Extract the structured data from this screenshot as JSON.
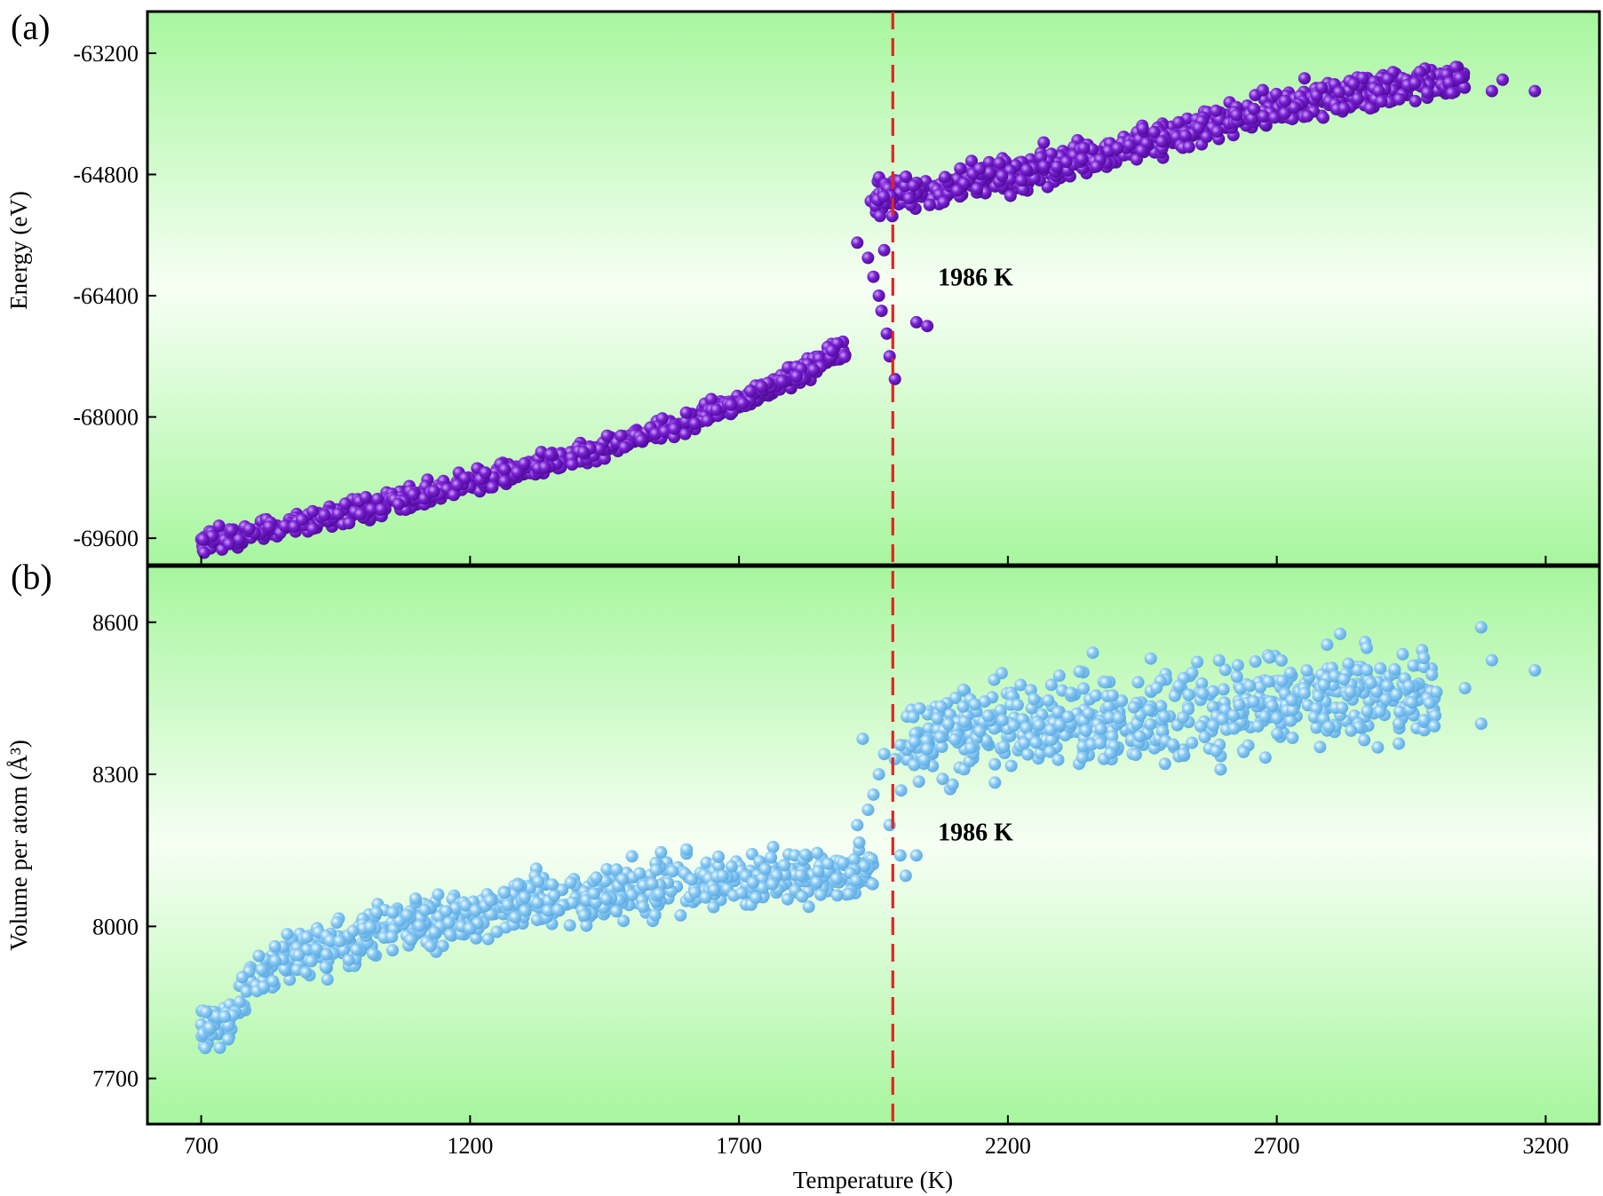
{
  "chart_data": {
    "type": "scatter",
    "shared_x": {
      "label": "Temperature (K)",
      "range": [
        600,
        3300
      ],
      "ticks": [
        700,
        1200,
        1700,
        2200,
        2700,
        3200
      ],
      "tick_labels": [
        "700",
        "1200",
        "1700",
        "2200",
        "2700",
        "3200"
      ]
    },
    "transition": {
      "temperature": 1986,
      "label": "1986 K",
      "line_color": "#e8211e"
    },
    "panels": [
      {
        "panel_label": "(a)",
        "ylabel": "Energy (eV)",
        "ylim": [
          -69950,
          -62650
        ],
        "yticks": [
          -63200,
          -64800,
          -66400,
          -68000,
          -69600
        ],
        "ytick_labels": [
          "-63200",
          "-64800",
          "-66400",
          "-68000",
          "-69600"
        ],
        "point_color": "#7a1fd6",
        "annotation": {
          "text": "1986 K",
          "x": 2070,
          "y": -66150
        },
        "series": [
          {
            "name": "solid",
            "segments": [
              {
                "x": 700,
                "y": -69650
              },
              {
                "x": 900,
                "y": -69400
              },
              {
                "x": 1100,
                "y": -69050
              },
              {
                "x": 1300,
                "y": -68700
              },
              {
                "x": 1500,
                "y": -68300
              },
              {
                "x": 1700,
                "y": -67800
              },
              {
                "x": 1800,
                "y": -67450
              },
              {
                "x": 1900,
                "y": -67100
              }
            ],
            "noise": 70
          },
          {
            "name": "transition",
            "points": [
              {
                "x": 1920,
                "y": -65700
              },
              {
                "x": 1940,
                "y": -65900
              },
              {
                "x": 1950,
                "y": -66150
              },
              {
                "x": 1960,
                "y": -66400
              },
              {
                "x": 1965,
                "y": -66600
              },
              {
                "x": 1970,
                "y": -65800
              },
              {
                "x": 1975,
                "y": -66900
              },
              {
                "x": 1980,
                "y": -67200
              },
              {
                "x": 1990,
                "y": -67500
              },
              {
                "x": 2030,
                "y": -66750
              },
              {
                "x": 2050,
                "y": -66800
              },
              {
                "x": 1955,
                "y": -65300
              },
              {
                "x": 1945,
                "y": -65150
              },
              {
                "x": 1985,
                "y": -65350
              }
            ]
          },
          {
            "name": "liquid",
            "segments": [
              {
                "x": 1950,
                "y": -65100
              },
              {
                "x": 2100,
                "y": -64950
              },
              {
                "x": 2300,
                "y": -64650
              },
              {
                "x": 2500,
                "y": -64300
              },
              {
                "x": 2700,
                "y": -63900
              },
              {
                "x": 2900,
                "y": -63650
              },
              {
                "x": 3050,
                "y": -63550
              }
            ],
            "noise": 110
          },
          {
            "name": "outliers",
            "points": [
              {
                "x": 3100,
                "y": -63700
              },
              {
                "x": 3120,
                "y": -63550
              },
              {
                "x": 3180,
                "y": -63700
              }
            ]
          }
        ]
      },
      {
        "panel_label": "(b)",
        "ylabel": "Volume per atom (Å³)",
        "ylim": [
          7610,
          8710
        ],
        "yticks": [
          8600,
          8300,
          8000,
          7700
        ],
        "ytick_labels": [
          "8600",
          "8300",
          "8000",
          "7700"
        ],
        "point_color": "#87c9f4",
        "annotation": {
          "text": "1986 K",
          "x": 2070,
          "y": 8187
        },
        "series": [
          {
            "name": "solid",
            "segments": [
              {
                "x": 700,
                "y": 7810
              },
              {
                "x": 740,
                "y": 7800
              },
              {
                "x": 800,
                "y": 7900
              },
              {
                "x": 900,
                "y": 7950
              },
              {
                "x": 1100,
                "y": 8010
              },
              {
                "x": 1300,
                "y": 8040
              },
              {
                "x": 1500,
                "y": 8070
              },
              {
                "x": 1700,
                "y": 8090
              },
              {
                "x": 1950,
                "y": 8110
              }
            ],
            "noise": 25
          },
          {
            "name": "transition",
            "points": [
              {
                "x": 1920,
                "y": 8200
              },
              {
                "x": 1940,
                "y": 8230
              },
              {
                "x": 1950,
                "y": 8260
              },
              {
                "x": 1960,
                "y": 8300
              },
              {
                "x": 1970,
                "y": 8340
              },
              {
                "x": 1930,
                "y": 8370
              },
              {
                "x": 1980,
                "y": 8200
              },
              {
                "x": 2000,
                "y": 8140
              },
              {
                "x": 2010,
                "y": 8100
              },
              {
                "x": 2030,
                "y": 8140
              },
              {
                "x": 1990,
                "y": 8330
              }
            ]
          },
          {
            "name": "liquid",
            "segments": [
              {
                "x": 2000,
                "y": 8360
              },
              {
                "x": 2200,
                "y": 8390
              },
              {
                "x": 2400,
                "y": 8410
              },
              {
                "x": 2600,
                "y": 8430
              },
              {
                "x": 2800,
                "y": 8455
              },
              {
                "x": 3000,
                "y": 8460
              }
            ],
            "noise": 45
          },
          {
            "name": "outliers",
            "points": [
              {
                "x": 3080,
                "y": 8590
              },
              {
                "x": 3080,
                "y": 8400
              },
              {
                "x": 3100,
                "y": 8525
              },
              {
                "x": 3180,
                "y": 8505
              },
              {
                "x": 3050,
                "y": 8470
              }
            ]
          }
        ]
      }
    ]
  }
}
